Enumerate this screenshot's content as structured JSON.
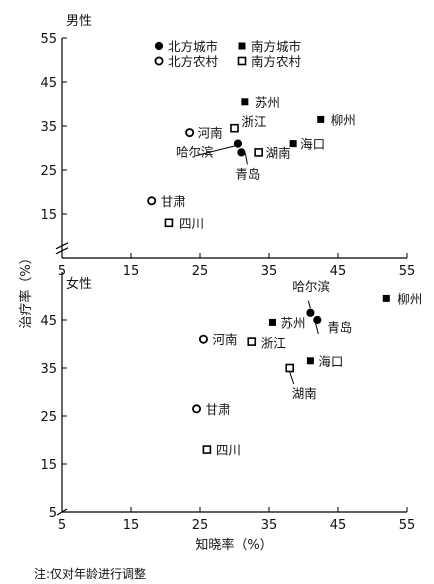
{
  "chart_data": [
    {
      "type": "scatter",
      "title": "男性",
      "ylabel": "治疗率（%）",
      "xlabel": "",
      "xlim": [
        5,
        55
      ],
      "ylim": [
        5,
        55
      ],
      "x_ticks": [
        5,
        15,
        25,
        35,
        45,
        55
      ],
      "y_ticks": [
        15,
        25,
        35,
        45,
        55
      ],
      "grid": false,
      "legend_position": "top-left",
      "legend": [
        {
          "name": "北方城市",
          "marker": "filled-circle"
        },
        {
          "name": "北方农村",
          "marker": "open-circle"
        },
        {
          "name": "南方城市",
          "marker": "filled-square"
        },
        {
          "name": "南方农村",
          "marker": "open-square"
        }
      ],
      "points": [
        {
          "name": "苏州",
          "x": 31.5,
          "y": 40.5,
          "marker": "filled-square"
        },
        {
          "name": "柳州",
          "x": 42.5,
          "y": 36.5,
          "marker": "filled-square"
        },
        {
          "name": "河南",
          "x": 23.5,
          "y": 33.5,
          "marker": "open-circle"
        },
        {
          "name": "浙江",
          "x": 30.0,
          "y": 34.5,
          "marker": "open-square"
        },
        {
          "name": "海口",
          "x": 38.5,
          "y": 31.0,
          "marker": "filled-square"
        },
        {
          "name": "哈尔滨",
          "x": 30.5,
          "y": 31.0,
          "marker": "filled-circle"
        },
        {
          "name": "湖南",
          "x": 33.5,
          "y": 29.0,
          "marker": "open-square"
        },
        {
          "name": "青岛",
          "x": 31.0,
          "y": 29.0,
          "marker": "filled-circle"
        },
        {
          "name": "甘肃",
          "x": 18.0,
          "y": 18.0,
          "marker": "open-circle"
        },
        {
          "name": "四川",
          "x": 20.5,
          "y": 13.0,
          "marker": "open-square"
        }
      ]
    },
    {
      "type": "scatter",
      "title": "女性",
      "ylabel": "",
      "xlabel": "知晓率（%）",
      "xlim": [
        5,
        55
      ],
      "ylim": [
        5,
        55
      ],
      "x_ticks": [
        5,
        15,
        25,
        35,
        45,
        55
      ],
      "y_ticks": [
        5,
        15,
        25,
        35,
        45
      ],
      "grid": false,
      "points": [
        {
          "name": "哈尔滨",
          "x": 41.0,
          "y": 46.5,
          "marker": "filled-circle"
        },
        {
          "name": "柳州",
          "x": 52.0,
          "y": 49.5,
          "marker": "filled-square"
        },
        {
          "name": "苏州",
          "x": 35.5,
          "y": 44.5,
          "marker": "filled-square"
        },
        {
          "name": "青岛",
          "x": 42.0,
          "y": 45.0,
          "marker": "filled-circle"
        },
        {
          "name": "河南",
          "x": 25.5,
          "y": 41.0,
          "marker": "open-circle"
        },
        {
          "name": "浙江",
          "x": 32.5,
          "y": 40.5,
          "marker": "open-square"
        },
        {
          "name": "海口",
          "x": 41.0,
          "y": 36.5,
          "marker": "filled-square"
        },
        {
          "name": "湖南",
          "x": 38.0,
          "y": 35.0,
          "marker": "open-square"
        },
        {
          "name": "甘肃",
          "x": 24.5,
          "y": 26.5,
          "marker": "open-circle"
        },
        {
          "name": "四川",
          "x": 26.0,
          "y": 18.0,
          "marker": "open-square"
        }
      ]
    }
  ],
  "note": "注:仅对年龄进行调整"
}
